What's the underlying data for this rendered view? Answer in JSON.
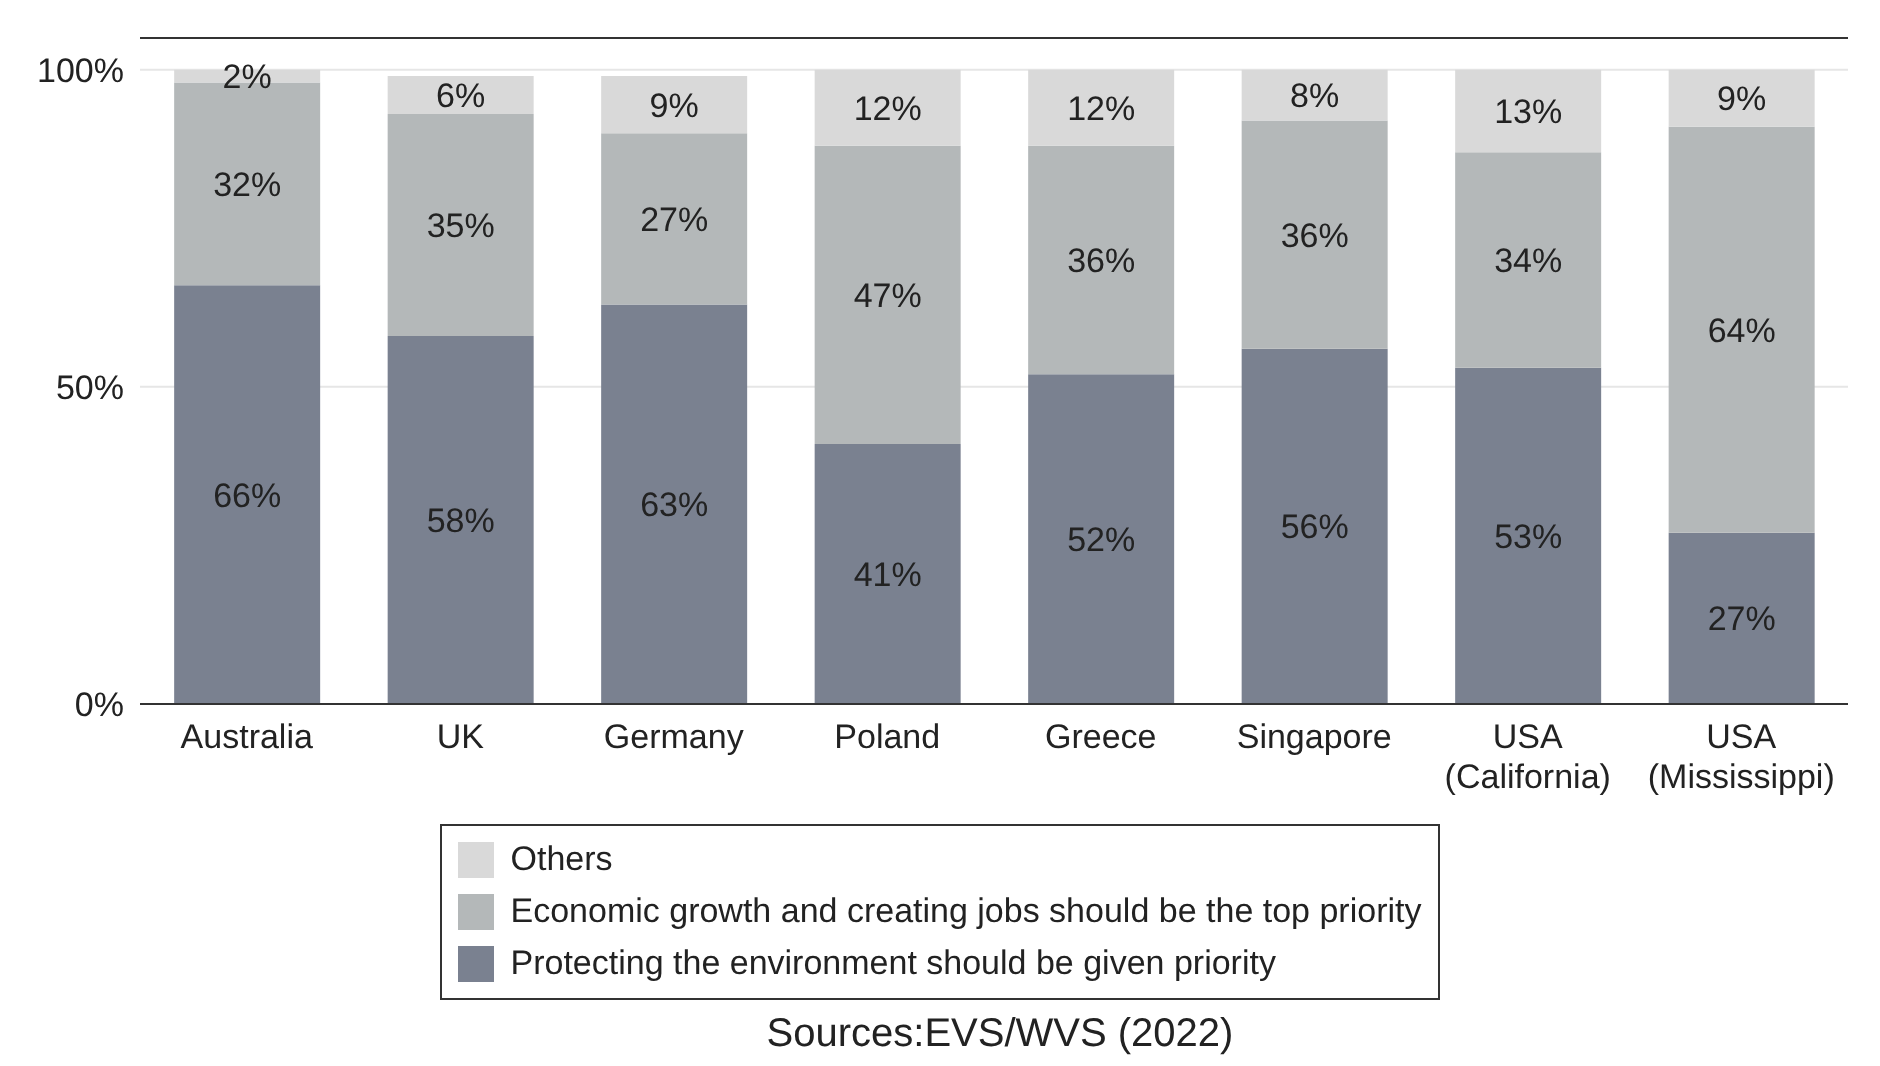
{
  "chart_data": {
    "type": "bar",
    "stacked": true,
    "categories": [
      "Australia",
      "UK",
      "Germany",
      "Poland",
      "Greece",
      "Singapore",
      "USA (California)",
      "USA (Mississippi)"
    ],
    "series": [
      {
        "name": "Protecting the environment should be given priority",
        "color": "#7a8190",
        "values": [
          66,
          58,
          63,
          41,
          52,
          56,
          53,
          27
        ],
        "value_labels": [
          "66%",
          "58%",
          "63%",
          "41%",
          "52%",
          "56%",
          "53%",
          "27%"
        ]
      },
      {
        "name": "Economic growth and creating jobs should be the top priority",
        "color": "#b4b8b9",
        "values": [
          32,
          35,
          27,
          47,
          36,
          36,
          34,
          64
        ],
        "value_labels": [
          "32%",
          "35%",
          "27%",
          "47%",
          "36%",
          "36%",
          "34%",
          "64%"
        ]
      },
      {
        "name": "Others",
        "color": "#d9d9d9",
        "values": [
          2,
          6,
          9,
          12,
          12,
          8,
          13,
          9
        ],
        "value_labels": [
          "2%",
          "6%",
          "9%",
          "12%",
          "12%",
          "8%",
          "13%",
          "9%"
        ]
      }
    ],
    "ylim": [
      0,
      105
    ],
    "yticks": [
      {
        "value": 0,
        "label": "0%"
      },
      {
        "value": 50,
        "label": "50%"
      },
      {
        "value": 100,
        "label": "100%"
      }
    ],
    "grid": "y",
    "legend": "bottom",
    "annotations": [
      "Sources:EVS/WVS (2022)"
    ]
  }
}
